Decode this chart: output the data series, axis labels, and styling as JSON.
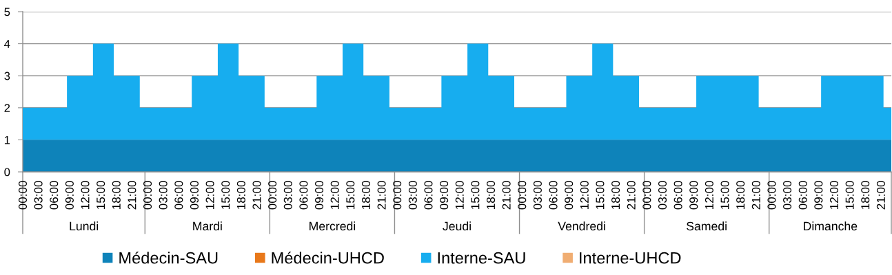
{
  "chart_data": {
    "type": "area",
    "stacked": true,
    "categories": [
      "00:00",
      null,
      null,
      "03:00",
      null,
      null,
      "06:00",
      null,
      null,
      "09:00",
      null,
      null,
      "12:00",
      null,
      null,
      "15:00",
      null,
      null,
      "18:00",
      null,
      null,
      "21:00",
      null,
      null,
      "00:00",
      null,
      null,
      "03:00",
      null,
      null,
      "06:00",
      null,
      null,
      "09:00",
      null,
      null,
      "12:00",
      null,
      null,
      "15:00",
      null,
      null,
      "18:00",
      null,
      null,
      "21:00",
      null,
      null,
      "00:00",
      null,
      null,
      "03:00",
      null,
      null,
      "06:00",
      null,
      null,
      "09:00",
      null,
      null,
      "12:00",
      null,
      null,
      "15:00",
      null,
      null,
      "18:00",
      null,
      null,
      "21:00",
      null,
      null,
      "00:00",
      null,
      null,
      "03:00",
      null,
      null,
      "06:00",
      null,
      null,
      "09:00",
      null,
      null,
      "12:00",
      null,
      null,
      "15:00",
      null,
      null,
      "18:00",
      null,
      null,
      "21:00",
      null,
      null,
      "00:00",
      null,
      null,
      "03:00",
      null,
      null,
      "06:00",
      null,
      null,
      "09:00",
      null,
      null,
      "12:00",
      null,
      null,
      "15:00",
      null,
      null,
      "18:00",
      null,
      null,
      "21:00",
      null,
      null,
      "00:00",
      null,
      null,
      "03:00",
      null,
      null,
      "06:00",
      null,
      null,
      "09:00",
      null,
      null,
      "12:00",
      null,
      null,
      "15:00",
      null,
      null,
      "18:00",
      null,
      null,
      "21:00",
      null,
      null,
      "00:00",
      null,
      null,
      "03:00",
      null,
      null,
      "06:00",
      null,
      null,
      "09:00",
      null,
      null,
      "12:00",
      null,
      null,
      "15:00",
      null,
      null,
      "18:00",
      null,
      null,
      "21:00",
      null,
      null
    ],
    "series": [
      {
        "name": "Médecin-SAU",
        "color": "#0e83ba",
        "values": [
          1,
          1,
          1,
          1,
          1,
          1,
          1,
          1,
          1,
          1,
          1,
          1,
          1,
          1,
          1,
          1,
          1,
          1,
          1,
          1,
          1,
          1,
          1,
          1,
          1,
          1,
          1,
          1,
          1,
          1,
          1,
          1,
          1,
          1,
          1,
          1,
          1,
          1,
          1,
          1,
          1,
          1,
          1,
          1,
          1,
          1,
          1,
          1,
          1,
          1,
          1,
          1,
          1,
          1,
          1,
          1,
          1,
          1,
          1,
          1,
          1,
          1,
          1,
          1,
          1,
          1,
          1,
          1,
          1,
          1,
          1,
          1,
          1,
          1,
          1,
          1,
          1,
          1,
          1,
          1,
          1,
          1,
          1,
          1,
          1,
          1,
          1,
          1,
          1,
          1,
          1,
          1,
          1,
          1,
          1,
          1,
          1,
          1,
          1,
          1,
          1,
          1,
          1,
          1,
          1,
          1,
          1,
          1,
          1,
          1,
          1,
          1,
          1,
          1,
          1,
          1,
          1,
          1,
          1,
          1,
          1,
          1,
          1,
          1,
          1,
          1,
          1,
          1,
          1,
          1,
          1,
          1,
          1,
          1,
          1,
          1,
          1,
          1,
          1,
          1,
          1,
          1,
          1,
          1,
          1,
          1,
          1,
          1,
          1,
          1,
          1,
          1,
          1,
          1,
          1,
          1,
          1,
          1,
          1,
          1,
          1,
          1,
          1,
          1,
          1,
          1,
          1,
          1
        ]
      },
      {
        "name": "Médecin-UHCD",
        "color": "#e8781a",
        "values": [
          null,
          null,
          null,
          null,
          null,
          null,
          null,
          null,
          null,
          null,
          null,
          null,
          null,
          null,
          null,
          null,
          null,
          null,
          null,
          null,
          null,
          null,
          null,
          null,
          null,
          null,
          null,
          null,
          null,
          null,
          null,
          null,
          null,
          null,
          null,
          null,
          null,
          null,
          null,
          null,
          null,
          null,
          null,
          null,
          null,
          null,
          null,
          null,
          null,
          null,
          null,
          null,
          null,
          null,
          null,
          null,
          null,
          null,
          null,
          null,
          null,
          null,
          null,
          null,
          null,
          null,
          null,
          null,
          null,
          null,
          null,
          null,
          null,
          null,
          null,
          null,
          null,
          null,
          null,
          null,
          null,
          null,
          null,
          null,
          null,
          null,
          null,
          null,
          null,
          null,
          null,
          null,
          null,
          null,
          null,
          null,
          null,
          null,
          null,
          null,
          null,
          null,
          null,
          null,
          null,
          null,
          null,
          null,
          null,
          null,
          null,
          null,
          null,
          null,
          null,
          null,
          null,
          null,
          null,
          null,
          null,
          null,
          null,
          null,
          null,
          null,
          null,
          null,
          null,
          null,
          null,
          null,
          null,
          null,
          null,
          null,
          null,
          null,
          null,
          null,
          null,
          null,
          null,
          null,
          null,
          null,
          null,
          null,
          null,
          null,
          null,
          null,
          null,
          null,
          null,
          null,
          null,
          null,
          null,
          null,
          null,
          null,
          null,
          null,
          null,
          null,
          null,
          null
        ]
      },
      {
        "name": "Interne-SAU",
        "color": "#17adef",
        "values": [
          1,
          1,
          1,
          1,
          1,
          1,
          1,
          1,
          1,
          2,
          2,
          2,
          2,
          2,
          3,
          3,
          3,
          3,
          2,
          2,
          2,
          2,
          2,
          1,
          1,
          1,
          1,
          1,
          1,
          1,
          1,
          1,
          1,
          2,
          2,
          2,
          2,
          2,
          3,
          3,
          3,
          3,
          2,
          2,
          2,
          2,
          2,
          1,
          1,
          1,
          1,
          1,
          1,
          1,
          1,
          1,
          1,
          2,
          2,
          2,
          2,
          2,
          3,
          3,
          3,
          3,
          2,
          2,
          2,
          2,
          2,
          1,
          1,
          1,
          1,
          1,
          1,
          1,
          1,
          1,
          1,
          2,
          2,
          2,
          2,
          2,
          3,
          3,
          3,
          3,
          2,
          2,
          2,
          2,
          2,
          1,
          1,
          1,
          1,
          1,
          1,
          1,
          1,
          1,
          1,
          2,
          2,
          2,
          2,
          2,
          3,
          3,
          3,
          3,
          2,
          2,
          2,
          2,
          2,
          1,
          1,
          1,
          1,
          1,
          1,
          1,
          1,
          1,
          1,
          1,
          2,
          2,
          2,
          2,
          2,
          2,
          2,
          2,
          2,
          2,
          2,
          2,
          1,
          1,
          1,
          1,
          1,
          1,
          1,
          1,
          1,
          1,
          1,
          1,
          2,
          2,
          2,
          2,
          2,
          2,
          2,
          2,
          2,
          2,
          2,
          2,
          1,
          1
        ]
      },
      {
        "name": "Interne-UHCD",
        "color": "#f0ad72",
        "values": [
          null,
          null,
          null,
          null,
          null,
          null,
          null,
          null,
          null,
          null,
          null,
          null,
          null,
          null,
          null,
          null,
          null,
          null,
          null,
          null,
          null,
          null,
          null,
          null,
          null,
          null,
          null,
          null,
          null,
          null,
          null,
          null,
          null,
          null,
          null,
          null,
          null,
          null,
          null,
          null,
          null,
          null,
          null,
          null,
          null,
          null,
          null,
          null,
          null,
          null,
          null,
          null,
          null,
          null,
          null,
          null,
          null,
          null,
          null,
          null,
          null,
          null,
          null,
          null,
          null,
          null,
          null,
          null,
          null,
          null,
          null,
          null,
          null,
          null,
          null,
          null,
          null,
          null,
          null,
          null,
          null,
          null,
          null,
          null,
          null,
          null,
          null,
          null,
          null,
          null,
          null,
          null,
          null,
          null,
          null,
          null,
          null,
          null,
          null,
          null,
          null,
          null,
          null,
          null,
          null,
          null,
          null,
          null,
          null,
          null,
          null,
          null,
          null,
          null,
          null,
          null,
          null,
          null,
          null,
          null,
          null,
          null,
          null,
          null,
          null,
          null,
          null,
          null,
          null,
          null,
          null,
          null,
          null,
          null,
          null,
          null,
          null,
          null,
          null,
          null,
          null,
          null,
          null,
          null,
          null,
          null,
          null,
          null,
          null,
          null,
          null,
          null,
          null,
          null,
          null,
          null,
          null,
          null,
          null,
          null,
          null,
          null,
          null,
          null,
          null,
          null,
          null,
          null
        ]
      }
    ],
    "ylim": [
      0,
      5
    ],
    "yticks": [
      0,
      1,
      2,
      3,
      4,
      5
    ],
    "grid": "y",
    "legend": "bottom",
    "annotations": [
      "Lundi",
      "Mardi",
      "Mercredi",
      "Jeudi",
      "Vendredi",
      "Samedi",
      "Dimanche"
    ]
  }
}
